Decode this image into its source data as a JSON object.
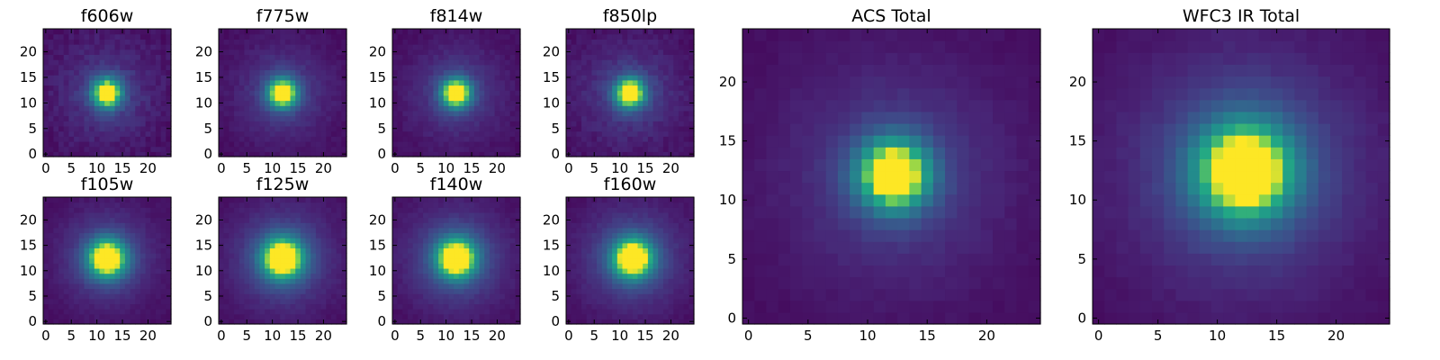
{
  "chart_data": [
    {
      "type": "heatmap",
      "title": "f606w",
      "x_ticks": [
        "0",
        "5",
        "10",
        "15",
        "20"
      ],
      "y_ticks": [
        "0",
        "5",
        "10",
        "15",
        "20"
      ],
      "xlim": [
        -0.5,
        24.5
      ],
      "ylim": [
        -0.5,
        24.5
      ],
      "center": [
        12,
        12
      ],
      "peak_sigma": 2.0,
      "halo_sigma": 6.5,
      "halo_amp": 0.18,
      "background": 0.05,
      "noise": 0.08,
      "colormap": "viridis"
    },
    {
      "type": "heatmap",
      "title": "f775w",
      "x_ticks": [
        "0",
        "5",
        "10",
        "15",
        "20"
      ],
      "y_ticks": [
        "0",
        "5",
        "10",
        "15",
        "20"
      ],
      "xlim": [
        -0.5,
        24.5
      ],
      "ylim": [
        -0.5,
        24.5
      ],
      "center": [
        12,
        12
      ],
      "peak_sigma": 2.0,
      "halo_sigma": 6.5,
      "halo_amp": 0.2,
      "background": 0.04,
      "noise": 0.05,
      "colormap": "viridis"
    },
    {
      "type": "heatmap",
      "title": "f814w",
      "x_ticks": [
        "0",
        "5",
        "10",
        "15",
        "20"
      ],
      "y_ticks": [
        "0",
        "5",
        "10",
        "15",
        "20"
      ],
      "xlim": [
        -0.5,
        24.5
      ],
      "ylim": [
        -0.5,
        24.5
      ],
      "center": [
        12,
        12
      ],
      "peak_sigma": 2.0,
      "halo_sigma": 6.5,
      "halo_amp": 0.2,
      "background": 0.04,
      "noise": 0.05,
      "colormap": "viridis"
    },
    {
      "type": "heatmap",
      "title": "f850lp",
      "x_ticks": [
        "0",
        "5",
        "10",
        "15",
        "20"
      ],
      "y_ticks": [
        "0",
        "5",
        "10",
        "15",
        "20"
      ],
      "xlim": [
        -0.5,
        24.5
      ],
      "ylim": [
        -0.5,
        24.5
      ],
      "center": [
        12,
        12
      ],
      "peak_sigma": 2.0,
      "halo_sigma": 6.5,
      "halo_amp": 0.2,
      "background": 0.05,
      "noise": 0.07,
      "colormap": "viridis"
    },
    {
      "type": "heatmap",
      "title": "ACS Total",
      "x_ticks": [
        "0",
        "5",
        "10",
        "15",
        "20"
      ],
      "y_ticks": [
        "0",
        "5",
        "10",
        "15",
        "20"
      ],
      "xlim": [
        -0.5,
        24.5
      ],
      "ylim": [
        -0.5,
        24.5
      ],
      "center": [
        12.2,
        12.2
      ],
      "peak_sigma": 2.1,
      "halo_sigma": 6.5,
      "halo_amp": 0.2,
      "background": 0.04,
      "noise": 0.03,
      "colormap": "viridis"
    },
    {
      "type": "heatmap",
      "title": "f105w",
      "x_ticks": [
        "0",
        "5",
        "10",
        "15",
        "20"
      ],
      "y_ticks": [
        "0",
        "5",
        "10",
        "15",
        "20"
      ],
      "xlim": [
        -0.5,
        24.5
      ],
      "ylim": [
        -0.5,
        24.5
      ],
      "center": [
        12,
        12.5
      ],
      "peak_sigma": 2.6,
      "halo_sigma": 6.5,
      "halo_amp": 0.25,
      "background": 0.04,
      "noise": 0.04,
      "colormap": "viridis"
    },
    {
      "type": "heatmap",
      "title": "f125w",
      "x_ticks": [
        "0",
        "5",
        "10",
        "15",
        "20"
      ],
      "y_ticks": [
        "0",
        "5",
        "10",
        "15",
        "20"
      ],
      "xlim": [
        -0.5,
        24.5
      ],
      "ylim": [
        -0.5,
        24.5
      ],
      "center": [
        12,
        12.5
      ],
      "peak_sigma": 2.8,
      "halo_sigma": 7.0,
      "halo_amp": 0.28,
      "background": 0.04,
      "noise": 0.04,
      "colormap": "viridis"
    },
    {
      "type": "heatmap",
      "title": "f140w",
      "x_ticks": [
        "0",
        "5",
        "10",
        "15",
        "20"
      ],
      "y_ticks": [
        "0",
        "5",
        "10",
        "15",
        "20"
      ],
      "xlim": [
        -0.5,
        24.5
      ],
      "ylim": [
        -0.5,
        24.5
      ],
      "center": [
        12,
        12.5
      ],
      "peak_sigma": 2.7,
      "halo_sigma": 7.0,
      "halo_amp": 0.28,
      "background": 0.04,
      "noise": 0.04,
      "colormap": "viridis"
    },
    {
      "type": "heatmap",
      "title": "f160w",
      "x_ticks": [
        "0",
        "5",
        "10",
        "15",
        "20"
      ],
      "y_ticks": [
        "0",
        "5",
        "10",
        "15",
        "20"
      ],
      "xlim": [
        -0.5,
        24.5
      ],
      "ylim": [
        -0.5,
        24.5
      ],
      "center": [
        12.5,
        12.5
      ],
      "peak_sigma": 2.7,
      "halo_sigma": 7.0,
      "halo_amp": 0.28,
      "background": 0.04,
      "noise": 0.04,
      "colormap": "viridis"
    },
    {
      "type": "heatmap",
      "title": "WFC3 IR Total",
      "x_ticks": [
        "0",
        "5",
        "10",
        "15",
        "20"
      ],
      "y_ticks": [
        "0",
        "5",
        "10",
        "15",
        "20"
      ],
      "xlim": [
        -0.5,
        24.5
      ],
      "ylim": [
        -0.5,
        24.5
      ],
      "center": [
        12.3,
        12.5
      ],
      "peak_sigma": 2.8,
      "halo_sigma": 7.0,
      "halo_amp": 0.28,
      "background": 0.04,
      "noise": 0.03,
      "colormap": "viridis"
    }
  ]
}
